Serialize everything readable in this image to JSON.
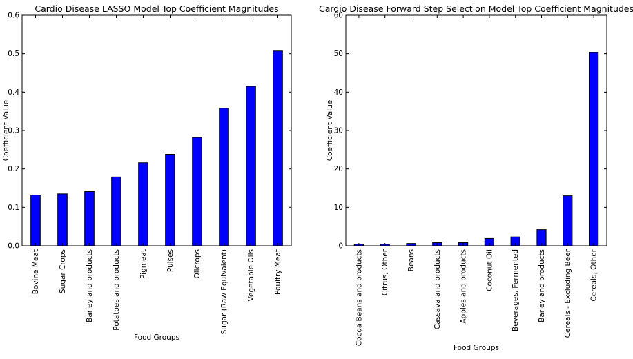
{
  "chart_data": [
    {
      "type": "bar",
      "title": "Cardio Disease LASSO Model Top Coefficient Magnitudes",
      "xlabel": "Food Groups",
      "ylabel": "Coefficient Value",
      "categories": [
        "Bovine Meat",
        "Sugar Crops",
        "Barley and products",
        "Potatoes and products",
        "Pigmeat",
        "Pulses",
        "Oilcrops",
        "Sugar (Raw Equivalent)",
        "Vegetable Oils",
        "Poultry Meat"
      ],
      "values": [
        0.132,
        0.135,
        0.141,
        0.179,
        0.216,
        0.238,
        0.282,
        0.358,
        0.415,
        0.507
      ],
      "ylim": [
        0,
        0.6
      ],
      "yticks": [
        "0.0",
        "0.1",
        "0.2",
        "0.3",
        "0.4",
        "0.5",
        "0.6"
      ],
      "bar_color": "#0000ff",
      "grid": false,
      "legend": "none"
    },
    {
      "type": "bar",
      "title": "Cardio Disease Forward Step Selection Model Top Coefficient Magnitudes",
      "xlabel": "Food Groups",
      "ylabel": "Coefficient Value",
      "categories": [
        "Cocoa Beans and products",
        "Citrus, Other",
        "Beans",
        "Cassava and products",
        "Apples and products",
        "Coconut Oil",
        "Beverages, Fermented",
        "Barley and products",
        "Cereals - Excluding Beer",
        "Cereals, Other"
      ],
      "values": [
        0.4,
        0.4,
        0.6,
        0.8,
        0.8,
        1.9,
        2.3,
        4.2,
        13.0,
        50.3
      ],
      "ylim": [
        0,
        60
      ],
      "yticks": [
        "0",
        "10",
        "20",
        "30",
        "40",
        "50",
        "60"
      ],
      "bar_color": "#0000ff",
      "grid": false,
      "legend": "none"
    }
  ]
}
